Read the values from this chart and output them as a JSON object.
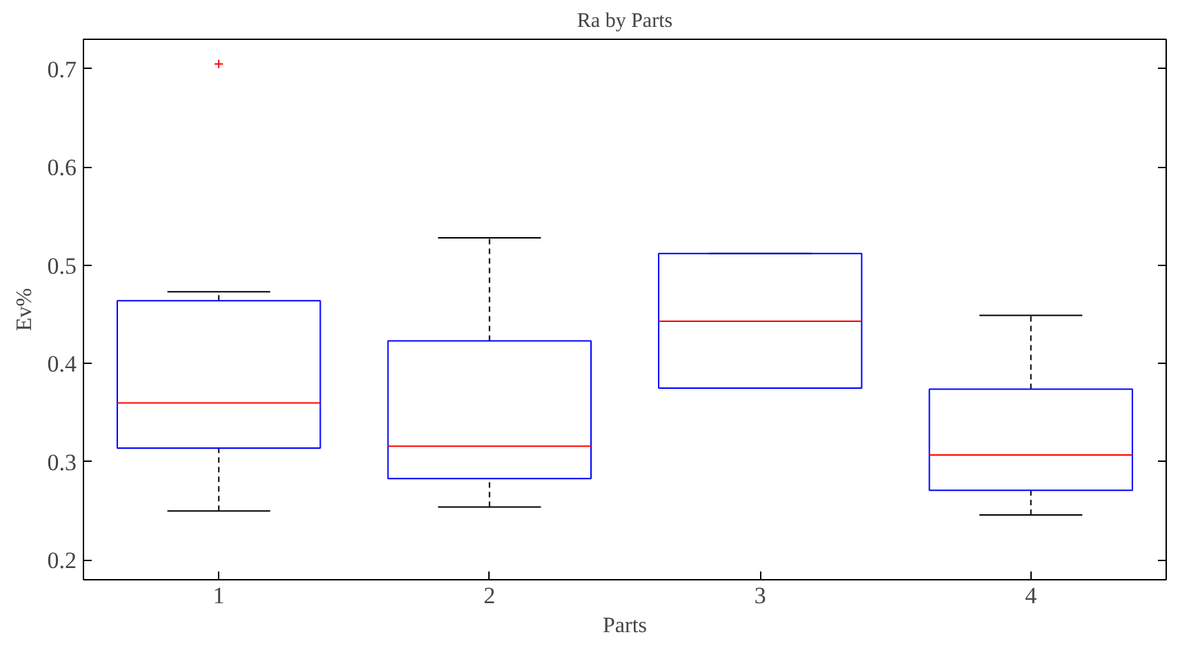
{
  "chart_data": {
    "type": "box",
    "title": "Ra by Parts",
    "xlabel": "Parts",
    "ylabel": "Ev%",
    "categories": [
      "1",
      "2",
      "3",
      "4"
    ],
    "boxes": [
      {
        "low": 0.25,
        "q1": 0.314,
        "median": 0.36,
        "q3": 0.464,
        "high": 0.473,
        "outliers": [
          0.705
        ]
      },
      {
        "low": 0.254,
        "q1": 0.283,
        "median": 0.316,
        "q3": 0.423,
        "high": 0.528
      },
      {
        "low": 0.375,
        "q1": 0.375,
        "median": 0.443,
        "q3": 0.512,
        "high": 0.512
      },
      {
        "low": 0.246,
        "q1": 0.271,
        "median": 0.307,
        "q3": 0.374,
        "high": 0.449
      }
    ],
    "color": "#0000ff",
    "ylim": [
      0.18,
      0.73
    ],
    "yticks": [
      0.2,
      0.3,
      0.4,
      0.5,
      0.6,
      0.7
    ],
    "grid": false
  }
}
